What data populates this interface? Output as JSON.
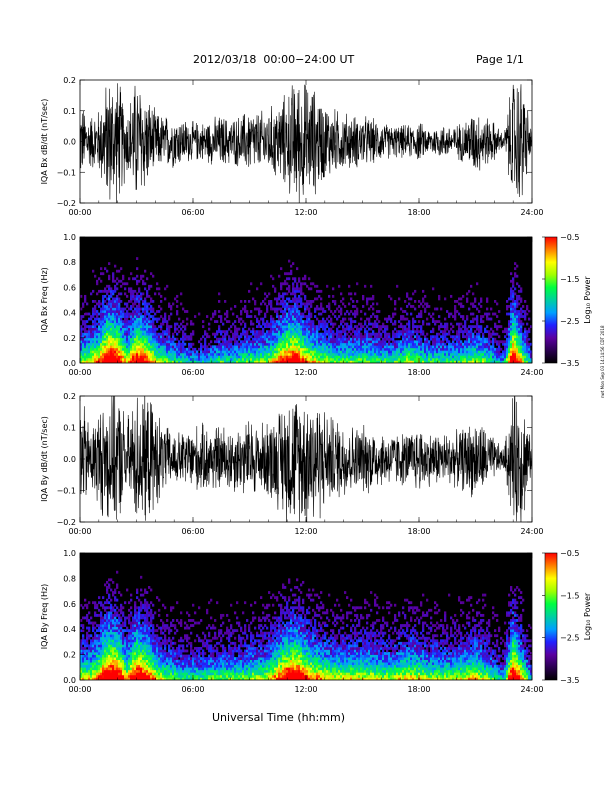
{
  "header": {
    "date_range": "2012/03/18  00:00−24:00 UT",
    "page": "Page 1/1"
  },
  "footer": {
    "xlabel": "Universal Time (hh:mm)",
    "side_stamp": "nwt Mon Sep 03 14:14:56 CDT 2018"
  },
  "colors": {
    "trace": "#000000",
    "spectrogram_background": "#000000",
    "colormap": [
      "#000000",
      "#2a0050",
      "#5a00a0",
      "#2020ff",
      "#00a0ff",
      "#00d0a0",
      "#00ff40",
      "#a0ff00",
      "#ffff00",
      "#ff8000",
      "#ff0000"
    ]
  },
  "chart_data": [
    {
      "type": "line",
      "ylabel": "IQA Bx dB/dt (nT/sec)",
      "xlim": [
        0,
        24
      ],
      "ylim": [
        -0.2,
        0.2
      ],
      "xticks": [
        "00:00",
        "06:00",
        "12:00",
        "18:00",
        "24:00"
      ],
      "yticks": [
        "0.2",
        "0.1",
        "0.0",
        "−0.1",
        "−0.2"
      ],
      "envelope": {
        "x": [
          0,
          0.5,
          1,
          1.5,
          2,
          2.5,
          3,
          3.5,
          4,
          4.5,
          5,
          5.5,
          6,
          6.5,
          7,
          7.5,
          8,
          8.5,
          9,
          9.5,
          10,
          10.5,
          11,
          11.5,
          12,
          12.5,
          13,
          13.5,
          14,
          14.5,
          15,
          15.5,
          16,
          16.5,
          17,
          17.5,
          18,
          18.5,
          19,
          19.5,
          20,
          20.5,
          21,
          21.5,
          22,
          22.5,
          23,
          23.5,
          24
        ],
        "amplitude": [
          0.12,
          0.08,
          0.1,
          0.2,
          0.2,
          0.1,
          0.2,
          0.15,
          0.09,
          0.08,
          0.08,
          0.07,
          0.06,
          0.06,
          0.07,
          0.08,
          0.07,
          0.08,
          0.1,
          0.09,
          0.1,
          0.12,
          0.15,
          0.2,
          0.18,
          0.16,
          0.12,
          0.1,
          0.09,
          0.08,
          0.08,
          0.07,
          0.06,
          0.05,
          0.05,
          0.05,
          0.06,
          0.04,
          0.05,
          0.05,
          0.05,
          0.07,
          0.1,
          0.08,
          0.06,
          0.02,
          0.2,
          0.2,
          0.02
        ]
      }
    },
    {
      "type": "heatmap",
      "ylabel": "IQA Bx Freq (Hz)",
      "xlim": [
        0,
        24
      ],
      "ylim": [
        0,
        1.0
      ],
      "xticks": [
        "00:00",
        "06:00",
        "12:00",
        "18:00",
        "24:00"
      ],
      "yticks": [
        "1.0",
        "0.8",
        "0.6",
        "0.4",
        "0.2",
        "0.0"
      ],
      "colorbar": {
        "label": "Log₁₀ Power",
        "range": [
          -3.5,
          -0.5
        ],
        "ticks": [
          "−0.5",
          "−1.5",
          "−2.5",
          "−3.5"
        ]
      },
      "activity": {
        "x": [
          0,
          0.5,
          1,
          1.5,
          2,
          2.5,
          3,
          3.5,
          4,
          4.5,
          5,
          5.5,
          6,
          6.5,
          7,
          7.5,
          8,
          8.5,
          9,
          9.5,
          10,
          10.5,
          11,
          11.5,
          12,
          12.5,
          13,
          13.5,
          14,
          14.5,
          15,
          15.5,
          16,
          16.5,
          17,
          17.5,
          18,
          18.5,
          19,
          19.5,
          20,
          20.5,
          21,
          21.5,
          22,
          22.5,
          23,
          23.5,
          24
        ],
        "level": [
          0.5,
          0.6,
          0.7,
          1.0,
          0.9,
          0.6,
          0.9,
          0.8,
          0.6,
          0.5,
          0.45,
          0.4,
          0.35,
          0.35,
          0.4,
          0.45,
          0.4,
          0.45,
          0.5,
          0.5,
          0.55,
          0.7,
          0.85,
          0.9,
          0.7,
          0.6,
          0.55,
          0.5,
          0.5,
          0.5,
          0.5,
          0.5,
          0.45,
          0.45,
          0.5,
          0.55,
          0.5,
          0.45,
          0.45,
          0.45,
          0.45,
          0.5,
          0.55,
          0.5,
          0.4,
          0.3,
          1.0,
          0.6,
          0.3
        ]
      }
    },
    {
      "type": "line",
      "ylabel": "IQA By dB/dt (nT/sec)",
      "xlim": [
        0,
        24
      ],
      "ylim": [
        -0.2,
        0.2
      ],
      "xticks": [
        "00:00",
        "06:00",
        "12:00",
        "18:00",
        "24:00"
      ],
      "yticks": [
        "0.2",
        "0.1",
        "0.0",
        "−0.1",
        "−0.2"
      ],
      "envelope": {
        "x": [
          0,
          0.5,
          1,
          1.5,
          2,
          2.5,
          3,
          3.5,
          4,
          4.5,
          5,
          5.5,
          6,
          6.5,
          7,
          7.5,
          8,
          8.5,
          9,
          9.5,
          10,
          10.5,
          11,
          11.5,
          12,
          12.5,
          13,
          13.5,
          14,
          14.5,
          15,
          15.5,
          16,
          16.5,
          17,
          17.5,
          18,
          18.5,
          19,
          19.5,
          20,
          20.5,
          21,
          21.5,
          22,
          22.5,
          23,
          23.5,
          24
        ],
        "amplitude": [
          0.2,
          0.1,
          0.15,
          0.2,
          0.2,
          0.12,
          0.2,
          0.2,
          0.15,
          0.1,
          0.08,
          0.08,
          0.1,
          0.1,
          0.1,
          0.1,
          0.1,
          0.1,
          0.12,
          0.1,
          0.12,
          0.14,
          0.2,
          0.2,
          0.2,
          0.2,
          0.15,
          0.12,
          0.12,
          0.1,
          0.1,
          0.1,
          0.08,
          0.08,
          0.08,
          0.08,
          0.1,
          0.08,
          0.08,
          0.08,
          0.08,
          0.1,
          0.12,
          0.1,
          0.06,
          0.03,
          0.2,
          0.2,
          0.03
        ]
      }
    },
    {
      "type": "heatmap",
      "ylabel": "IQA By Freq (Hz)",
      "xlim": [
        0,
        24
      ],
      "ylim": [
        0,
        1.0
      ],
      "xticks": [
        "00:00",
        "06:00",
        "12:00",
        "18:00",
        "24:00"
      ],
      "yticks": [
        "1.0",
        "0.8",
        "0.6",
        "0.4",
        "0.2",
        "0.0"
      ],
      "colorbar": {
        "label": "Log₁₀ Power",
        "range": [
          -3.5,
          -0.5
        ],
        "ticks": [
          "−0.5",
          "−1.5",
          "−2.5",
          "−3.5"
        ]
      },
      "activity": {
        "x": [
          0,
          0.5,
          1,
          1.5,
          2,
          2.5,
          3,
          3.5,
          4,
          4.5,
          5,
          5.5,
          6,
          6.5,
          7,
          7.5,
          8,
          8.5,
          9,
          9.5,
          10,
          10.5,
          11,
          11.5,
          12,
          12.5,
          13,
          13.5,
          14,
          14.5,
          15,
          15.5,
          16,
          16.5,
          17,
          17.5,
          18,
          18.5,
          19,
          19.5,
          20,
          20.5,
          21,
          21.5,
          22,
          22.5,
          23,
          23.5,
          24
        ],
        "level": [
          0.6,
          0.6,
          0.75,
          1.0,
          0.95,
          0.65,
          0.95,
          0.85,
          0.65,
          0.55,
          0.5,
          0.45,
          0.45,
          0.45,
          0.5,
          0.5,
          0.5,
          0.5,
          0.55,
          0.55,
          0.6,
          0.75,
          0.9,
          0.95,
          0.8,
          0.7,
          0.65,
          0.6,
          0.6,
          0.6,
          0.6,
          0.6,
          0.55,
          0.55,
          0.6,
          0.65,
          0.6,
          0.55,
          0.55,
          0.55,
          0.55,
          0.6,
          0.65,
          0.55,
          0.45,
          0.35,
          1.0,
          0.65,
          0.3
        ]
      }
    }
  ]
}
